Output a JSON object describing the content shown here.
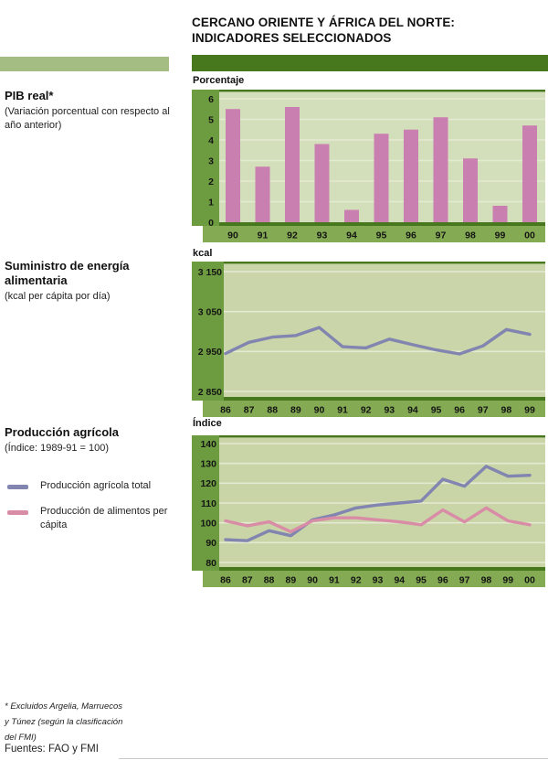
{
  "header": {
    "title_line1": "CERCANO ORIENTE Y ÁFRICA DEL NORTE:",
    "title_line2": "INDICADORES SELECCIONADOS"
  },
  "sections": [
    {
      "heading": "PIB real*",
      "subheading": "(Variación porcentual con respecto al año anterior)",
      "unit_label": "Porcentaje"
    },
    {
      "heading": "Suministro de energía alimentaria",
      "subheading": "(kcal per cápita por día)",
      "unit_label": "kcal"
    },
    {
      "heading": "Producción agrícola",
      "subheading": "(Índice: 1989-91 = 100)",
      "unit_label": "Índice"
    }
  ],
  "legend": {
    "items": [
      {
        "label": "Producción agrícola total",
        "color": "#8185b0"
      },
      {
        "label": "Producción de alimentos per cápita",
        "color": "#d98ca6"
      }
    ]
  },
  "footnote": {
    "lines": [
      "* Excluidos Argelia, Marruecos",
      "y Túnez (según la clasificación",
      "del FMI)"
    ]
  },
  "source": "Fuentes: FAO y FMI",
  "colors": {
    "header_bar": "#47781e",
    "left_accent_bar": "#a3bd82",
    "axis_strip": "#6d9c40",
    "xaxis_strip": "#84ab53",
    "frame_dark": "#47781e",
    "gridline": "#e4ead2",
    "plot_bg": [
      "#d3dfba",
      "#cad5a9",
      "#c9d4a7"
    ],
    "bar_pink": "#c97fb0",
    "line_purple": "#8185b0",
    "line_pink": "#d98ca6"
  },
  "chart_data": [
    {
      "type": "bar",
      "title": "PIB real (variación porcentual con respecto al año anterior)",
      "ylabel": "Porcentaje",
      "categories": [
        "90",
        "91",
        "92",
        "93",
        "94",
        "95",
        "96",
        "97",
        "98",
        "99",
        "00"
      ],
      "values": [
        5.5,
        2.7,
        5.6,
        3.8,
        0.6,
        4.3,
        4.5,
        5.1,
        3.1,
        0.8,
        4.7
      ],
      "ylim": [
        0,
        6
      ],
      "ytick_values": [
        6,
        5,
        4,
        3,
        2,
        1,
        0
      ],
      "ytick_labels": [
        "6",
        "5",
        "4",
        "3",
        "2",
        "1",
        "0"
      ],
      "grid": true,
      "bar_color": "#c97fb0"
    },
    {
      "type": "line",
      "title": "Suministro de energía alimentaria (kcal per cápita por día)",
      "ylabel": "kcal",
      "x": [
        "86",
        "87",
        "88",
        "89",
        "90",
        "91",
        "92",
        "93",
        "94",
        "95",
        "96",
        "97",
        "98",
        "99"
      ],
      "series": [
        {
          "name": "Suministro de energía alimentaria",
          "color": "#8185b0",
          "values": [
            2945,
            2973,
            2986,
            2990,
            3010,
            2962,
            2959,
            2981,
            2967,
            2954,
            2944,
            2964,
            3005,
            2993
          ]
        }
      ],
      "ylim": [
        2850,
        3150
      ],
      "ytick_values": [
        3150,
        3050,
        2950,
        2850
      ],
      "ytick_labels": [
        "3 150",
        "3 050",
        "2 950",
        "2 850"
      ],
      "grid": true
    },
    {
      "type": "line",
      "title": "Producción agrícola (Índice: 1989-91 = 100)",
      "ylabel": "Índice",
      "x": [
        "86",
        "87",
        "88",
        "89",
        "90",
        "91",
        "92",
        "93",
        "94",
        "95",
        "96",
        "97",
        "98",
        "99",
        "00"
      ],
      "series": [
        {
          "name": "Producción agrícola total",
          "color": "#8185b0",
          "values": [
            91.5,
            91,
            96,
            93.5,
            101.5,
            104,
            107.5,
            109,
            110,
            111,
            122,
            118.5,
            128.5,
            123.5,
            124
          ]
        },
        {
          "name": "Producción de alimentos per cápita",
          "color": "#d98ca6",
          "values": [
            101,
            98.5,
            100.5,
            95.5,
            101,
            102.5,
            102.5,
            101.5,
            100.5,
            99,
            106.5,
            100.5,
            107.5,
            101,
            99
          ]
        }
      ],
      "ylim": [
        80,
        140
      ],
      "ytick_values": [
        140,
        130,
        120,
        110,
        100,
        90,
        80
      ],
      "ytick_labels": [
        "140",
        "130",
        "120",
        "110",
        "100",
        "90",
        "80"
      ],
      "grid": true,
      "legend_position": "left"
    }
  ]
}
